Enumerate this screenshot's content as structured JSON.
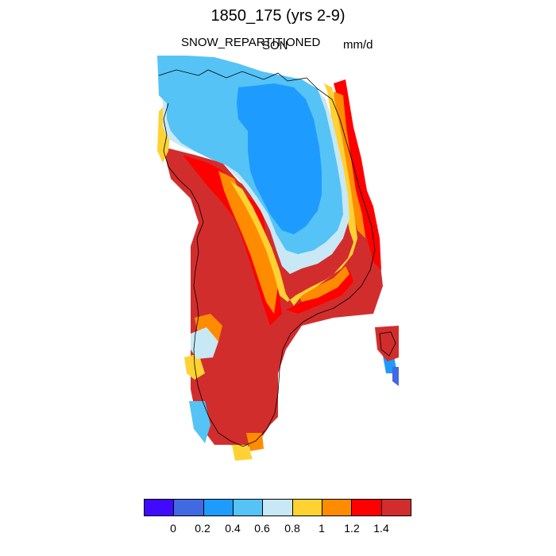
{
  "header": {
    "title": "1850_175 (yrs 2-9)",
    "variable": "SNOW_REPARTITIONED",
    "season": "SON",
    "units": "mm/d"
  },
  "colors": {
    "level_0": "#3f0aff",
    "level_1": "#4169e1",
    "level_2": "#1e9bff",
    "level_3": "#55c3f5",
    "level_4": "#c8e8f5",
    "level_5": "#ffd233",
    "level_6": "#ff8c00",
    "level_7": "#ff0000",
    "level_8": "#d22d2d"
  },
  "colorbar": {
    "labels": [
      "0",
      "0.2",
      "0.4",
      "0.6",
      "0.8",
      "1",
      "1.2",
      "1.4"
    ]
  }
}
